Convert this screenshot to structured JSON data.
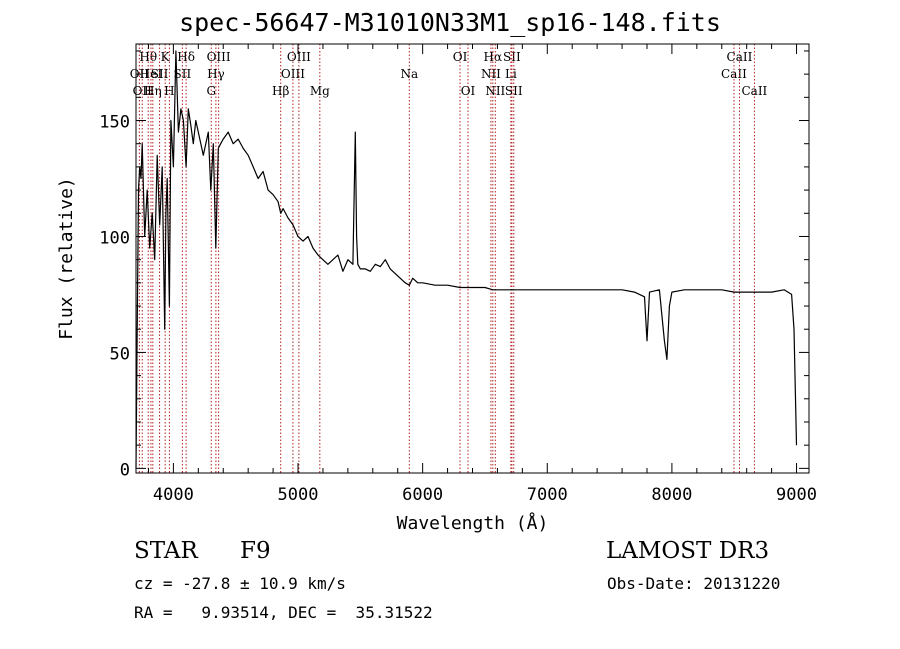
{
  "chart_data": {
    "type": "line",
    "title": "spec-56647-M31010N33M1_sp16-148.fits",
    "xlabel": "Wavelength (Å)",
    "ylabel": "Flux (relative)",
    "xlim": [
      3700,
      9100
    ],
    "ylim": [
      -2,
      183
    ],
    "xticks": [
      4000,
      5000,
      6000,
      7000,
      8000,
      9000
    ],
    "yticks": [
      0,
      50,
      100,
      150
    ],
    "x_minor_step": 200,
    "y_minor_step": 10,
    "series": [
      {
        "name": "spectrum",
        "x": [
          3700,
          3710,
          3720,
          3730,
          3740,
          3750,
          3770,
          3790,
          3810,
          3830,
          3850,
          3870,
          3890,
          3910,
          3930,
          3940,
          3950,
          3968,
          3980,
          4000,
          4020,
          4040,
          4060,
          4080,
          4102,
          4120,
          4140,
          4160,
          4180,
          4200,
          4240,
          4280,
          4300,
          4320,
          4340,
          4360,
          4380,
          4400,
          4440,
          4480,
          4520,
          4560,
          4600,
          4640,
          4680,
          4720,
          4760,
          4800,
          4840,
          4861,
          4880,
          4920,
          4960,
          5000,
          5040,
          5080,
          5120,
          5160,
          5200,
          5240,
          5280,
          5320,
          5360,
          5400,
          5440,
          5460,
          5470,
          5480,
          5500,
          5540,
          5580,
          5620,
          5660,
          5700,
          5740,
          5780,
          5820,
          5860,
          5893,
          5920,
          5960,
          6000,
          6100,
          6200,
          6300,
          6400,
          6500,
          6563,
          6600,
          6700,
          6800,
          6900,
          7000,
          7200,
          7400,
          7600,
          7700,
          7780,
          7800,
          7820,
          7900,
          7940,
          7960,
          7980,
          8000,
          8100,
          8200,
          8300,
          8400,
          8500,
          8600,
          8700,
          8800,
          8900,
          8960,
          8980,
          9000
        ],
        "y": [
          0,
          60,
          120,
          130,
          125,
          140,
          100,
          120,
          95,
          110,
          90,
          135,
          105,
          130,
          60,
          110,
          125,
          70,
          150,
          130,
          180,
          145,
          155,
          150,
          130,
          155,
          148,
          140,
          150,
          145,
          135,
          145,
          120,
          140,
          95,
          138,
          140,
          142,
          145,
          140,
          142,
          138,
          135,
          130,
          125,
          128,
          120,
          118,
          115,
          110,
          112,
          108,
          105,
          100,
          98,
          100,
          95,
          92,
          90,
          88,
          90,
          92,
          85,
          90,
          88,
          145,
          100,
          88,
          86,
          86,
          85,
          88,
          87,
          90,
          86,
          84,
          82,
          80,
          79,
          82,
          80,
          80,
          79,
          79,
          78,
          78,
          78,
          77,
          77,
          77,
          77,
          77,
          77,
          77,
          77,
          77,
          76,
          74,
          55,
          76,
          77,
          55,
          47,
          70,
          76,
          77,
          77,
          77,
          77,
          76,
          76,
          76,
          76,
          77,
          75,
          60,
          10
        ]
      }
    ],
    "lines": [
      {
        "wave": 3727,
        "label": "OII",
        "row": 2
      },
      {
        "wave": 3750,
        "label": "OII",
        "row": 3
      },
      {
        "wave": 3798,
        "label": "Hθ",
        "row": 1
      },
      {
        "wave": 3820,
        "label": "HeI",
        "row": 2
      },
      {
        "wave": 3835,
        "label": "Hη",
        "row": 3
      },
      {
        "wave": 3889,
        "label": "SII",
        "row": 2
      },
      {
        "wave": 3934,
        "label": "K",
        "row": 1
      },
      {
        "wave": 3968,
        "label": "H",
        "row": 3
      },
      {
        "wave": 4102,
        "label": "Hδ",
        "row": 1
      },
      {
        "wave": 4072,
        "label": "SII",
        "row": 2
      },
      {
        "wave": 4304,
        "label": "G",
        "row": 3
      },
      {
        "wave": 4341,
        "label": "Hγ",
        "row": 2
      },
      {
        "wave": 4363,
        "label": "OIII",
        "row": 1
      },
      {
        "wave": 4861,
        "label": "Hβ",
        "row": 3
      },
      {
        "wave": 4959,
        "label": "OIII",
        "row": 2
      },
      {
        "wave": 5007,
        "label": "OIII",
        "row": 1
      },
      {
        "wave": 5175,
        "label": "Mg",
        "row": 3
      },
      {
        "wave": 5893,
        "label": "Na",
        "row": 2
      },
      {
        "wave": 6300,
        "label": "OI",
        "row": 1
      },
      {
        "wave": 6364,
        "label": "OI",
        "row": 3
      },
      {
        "wave": 6548,
        "label": "NII",
        "row": 2
      },
      {
        "wave": 6563,
        "label": "Hα",
        "row": 1
      },
      {
        "wave": 6583,
        "label": "NII",
        "row": 3
      },
      {
        "wave": 6708,
        "label": "Li",
        "row": 2
      },
      {
        "wave": 6716,
        "label": "SII",
        "row": 1
      },
      {
        "wave": 6731,
        "label": "SII",
        "row": 3
      },
      {
        "wave": 8498,
        "label": "CaII",
        "row": 2
      },
      {
        "wave": 8542,
        "label": "CaII",
        "row": 1
      },
      {
        "wave": 8662,
        "label": "CaII",
        "row": 3
      }
    ]
  },
  "info": {
    "object_type": "STAR",
    "spectral_class": "F9",
    "survey": "LAMOST DR3",
    "cz": "cz = -27.8 ± 10.9 km/s",
    "obs_date": "Obs-Date: 20131220",
    "ra_dec": "RA =   9.93514, DEC =  35.31522"
  },
  "colors": {
    "axes": "#000000",
    "spectrum": "#000000",
    "line_marker": "#b22222"
  }
}
